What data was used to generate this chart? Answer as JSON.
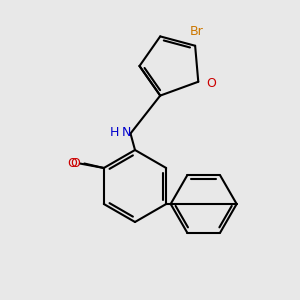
{
  "background_color": "#e8e8e8",
  "bond_color": "#000000",
  "br_color": "#cc7700",
  "n_color": "#0000cc",
  "o_color": "#cc0000",
  "figsize": [
    3.0,
    3.0
  ],
  "dpi": 100,
  "atoms": {
    "Br": "Br",
    "N": "N",
    "H": "H",
    "O_furan": "O",
    "O_methoxy": "O"
  }
}
